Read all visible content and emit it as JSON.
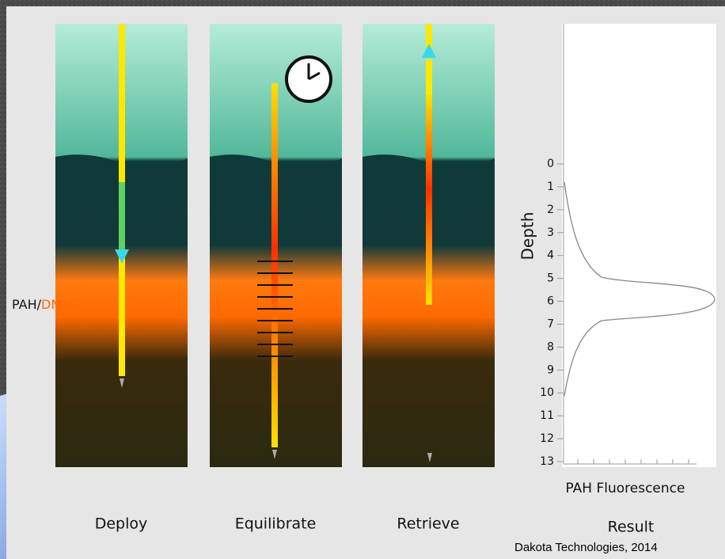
{
  "panels": [
    {
      "label": "Deploy"
    },
    {
      "label": "Equilibrate"
    },
    {
      "label": "Retrieve"
    },
    {
      "label": "Result"
    }
  ],
  "layer_label": {
    "part1": "PAH/",
    "part2": "DNAPL"
  },
  "result_plot": {
    "y_label": "Depth",
    "x_label": "PAH Fluorescence",
    "depth_ticks": [
      0,
      1,
      2,
      3,
      4,
      5,
      6,
      7,
      8,
      9,
      10,
      11,
      12,
      13
    ]
  },
  "credit": "Dakota Technologies, 2014"
}
